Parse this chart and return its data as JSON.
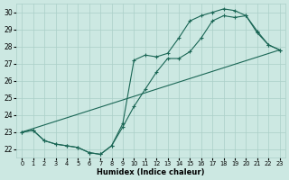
{
  "xlabel": "Humidex (Indice chaleur)",
  "ylabel": "",
  "xlim": [
    -0.5,
    23.5
  ],
  "ylim": [
    21.5,
    30.5
  ],
  "xticks": [
    0,
    1,
    2,
    3,
    4,
    5,
    6,
    7,
    8,
    9,
    10,
    11,
    12,
    13,
    14,
    15,
    16,
    17,
    18,
    19,
    20,
    21,
    22,
    23
  ],
  "yticks": [
    22,
    23,
    24,
    25,
    26,
    27,
    28,
    29,
    30
  ],
  "background_color": "#cce8e2",
  "grid_color": "#aacfc8",
  "line_color": "#1a6655",
  "line1_x": [
    0,
    1,
    2,
    3,
    4,
    5,
    6,
    7,
    8,
    9,
    10,
    11,
    12,
    13,
    14,
    15,
    16,
    17,
    18,
    19,
    20,
    21,
    22,
    23
  ],
  "line1_y": [
    23.0,
    23.1,
    22.5,
    22.3,
    22.2,
    22.1,
    21.8,
    21.7,
    22.2,
    23.3,
    24.5,
    25.5,
    26.5,
    27.3,
    27.3,
    27.7,
    28.5,
    29.5,
    29.8,
    29.7,
    29.8,
    28.9,
    28.1,
    27.8
  ],
  "line2_x": [
    0,
    1,
    2,
    3,
    4,
    5,
    6,
    7,
    8,
    9,
    10,
    11,
    12,
    13,
    14,
    15,
    16,
    17,
    18,
    19,
    20,
    21,
    22,
    23
  ],
  "line2_y": [
    23.0,
    23.1,
    22.5,
    22.3,
    22.2,
    22.1,
    21.8,
    21.7,
    22.2,
    23.5,
    27.2,
    27.5,
    27.4,
    27.6,
    28.5,
    29.5,
    29.8,
    30.0,
    30.2,
    30.1,
    29.8,
    28.8,
    28.1,
    27.8
  ],
  "line3_x": [
    0,
    23
  ],
  "line3_y": [
    23.0,
    27.8
  ]
}
